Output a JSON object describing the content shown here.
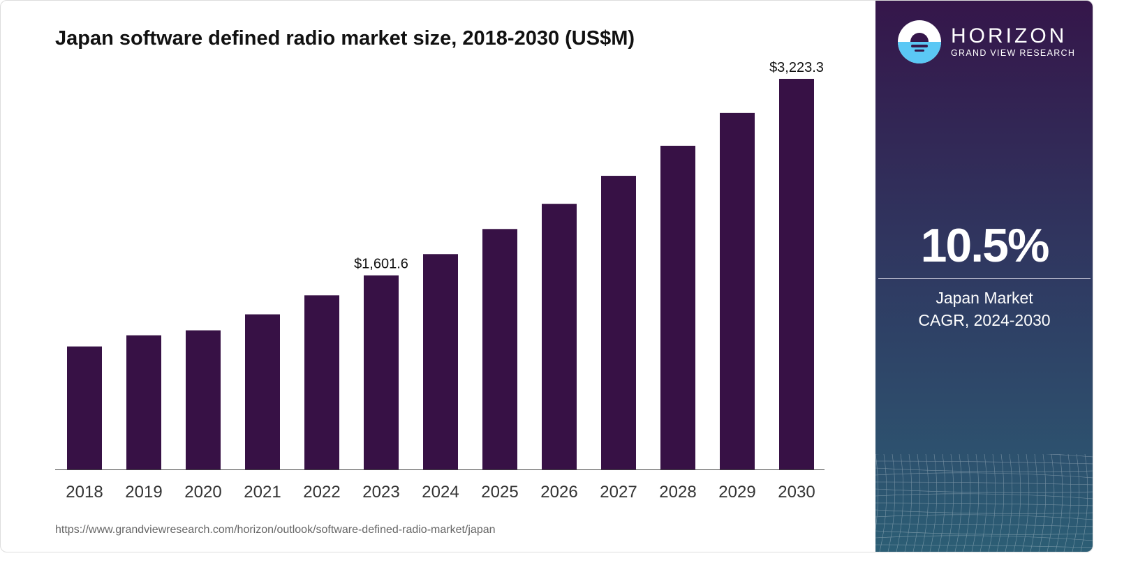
{
  "chart_data": {
    "type": "bar",
    "title": "Japan software defined radio market size, 2018-2030 (US$M)",
    "categories": [
      "2018",
      "2019",
      "2020",
      "2021",
      "2022",
      "2023",
      "2024",
      "2025",
      "2026",
      "2027",
      "2028",
      "2029",
      "2030"
    ],
    "values": [
      1015,
      1107,
      1148,
      1280,
      1437,
      1601.6,
      1777,
      1984,
      2192,
      2423,
      2671,
      2942,
      3223.3
    ],
    "data_labels": {
      "2023": "$1,601.6",
      "2030": "$3,223.3"
    },
    "xlabel": "",
    "ylabel": "",
    "ylim": [
      0,
      3223.3
    ],
    "grid": false,
    "bar_color": "#371145"
  },
  "source_url": "https://www.grandviewresearch.com/horizon/outlook/software-defined-radio-market/japan",
  "panel": {
    "brand": "HORIZON",
    "brand_sub": "GRAND VIEW RESEARCH",
    "cagr": "10.5%",
    "label_line1": "Japan Market",
    "label_line2": "CAGR, 2024-2030"
  }
}
